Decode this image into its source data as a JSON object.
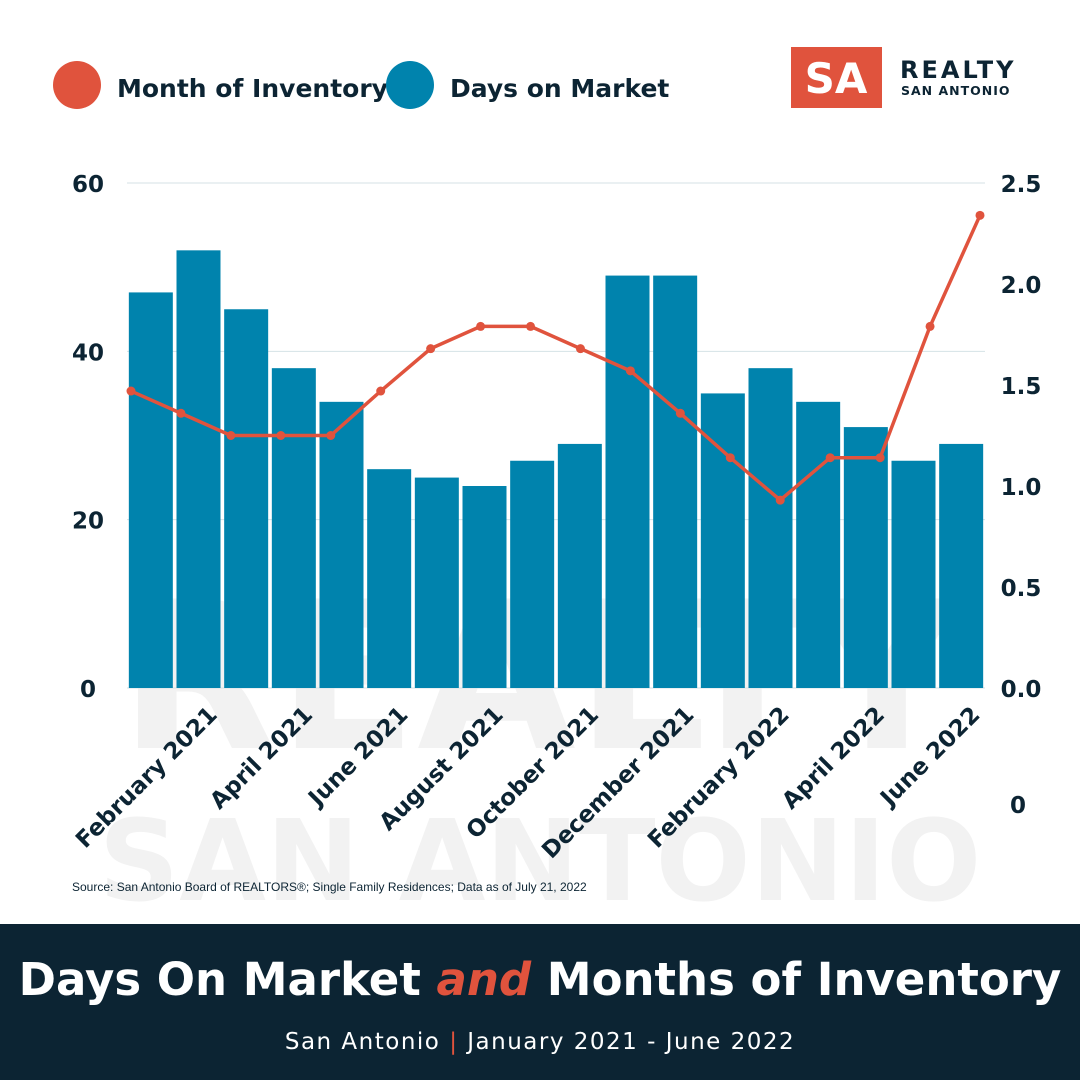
{
  "logo": {
    "mark": "SA",
    "name": "REALTY",
    "tagline": "SAN ANTONIO"
  },
  "watermark": [
    "REALTY",
    "SAN ANTONIO"
  ],
  "chart_data": {
    "type": "bar",
    "categories": [
      null,
      "February 2021",
      null,
      "April 2021",
      null,
      "June 2021",
      null,
      "August 2021",
      null,
      "October 2021",
      null,
      "December 2021",
      null,
      "February 2022",
      null,
      "April 2022",
      null,
      "June 2022"
    ],
    "series": [
      {
        "name": "Month of Inventory",
        "type": "line",
        "axis": "y2",
        "color": "#e0533d",
        "values": [
          1.47,
          1.36,
          1.25,
          1.25,
          1.25,
          1.47,
          1.68,
          1.79,
          1.79,
          1.68,
          1.57,
          1.36,
          1.14,
          0.93,
          1.14,
          1.14,
          1.79,
          2.34
        ]
      },
      {
        "name": "Days on Market",
        "type": "bar",
        "color": "#0083ad",
        "values": [
          47,
          52,
          45,
          38,
          34,
          26,
          25,
          24,
          27,
          29,
          49,
          49,
          35,
          38,
          34,
          31,
          27,
          29
        ]
      }
    ],
    "ylim": [
      0,
      60
    ],
    "yticks": [
      0,
      20,
      40,
      60
    ],
    "y2lim": [
      0,
      2.5
    ],
    "y2ticks": [
      {
        "value": 0,
        "label": "0.0"
      },
      0.5,
      {
        "value": 1,
        "label": "1.0"
      },
      1.5,
      {
        "value": 2,
        "label": "2.0"
      },
      2.5
    ],
    "grid": true,
    "legend": "top-left",
    "corner_label": "0",
    "source": "Source: San Antonio Board of REALTORS®; Single Family Residences; Data as of July 21, 2022"
  },
  "footer": {
    "title": [
      "Days On Market ",
      "and",
      " Months of Inventory"
    ],
    "subtitle": [
      "San Antonio ",
      "|",
      " January 2021 - June 2022"
    ]
  }
}
